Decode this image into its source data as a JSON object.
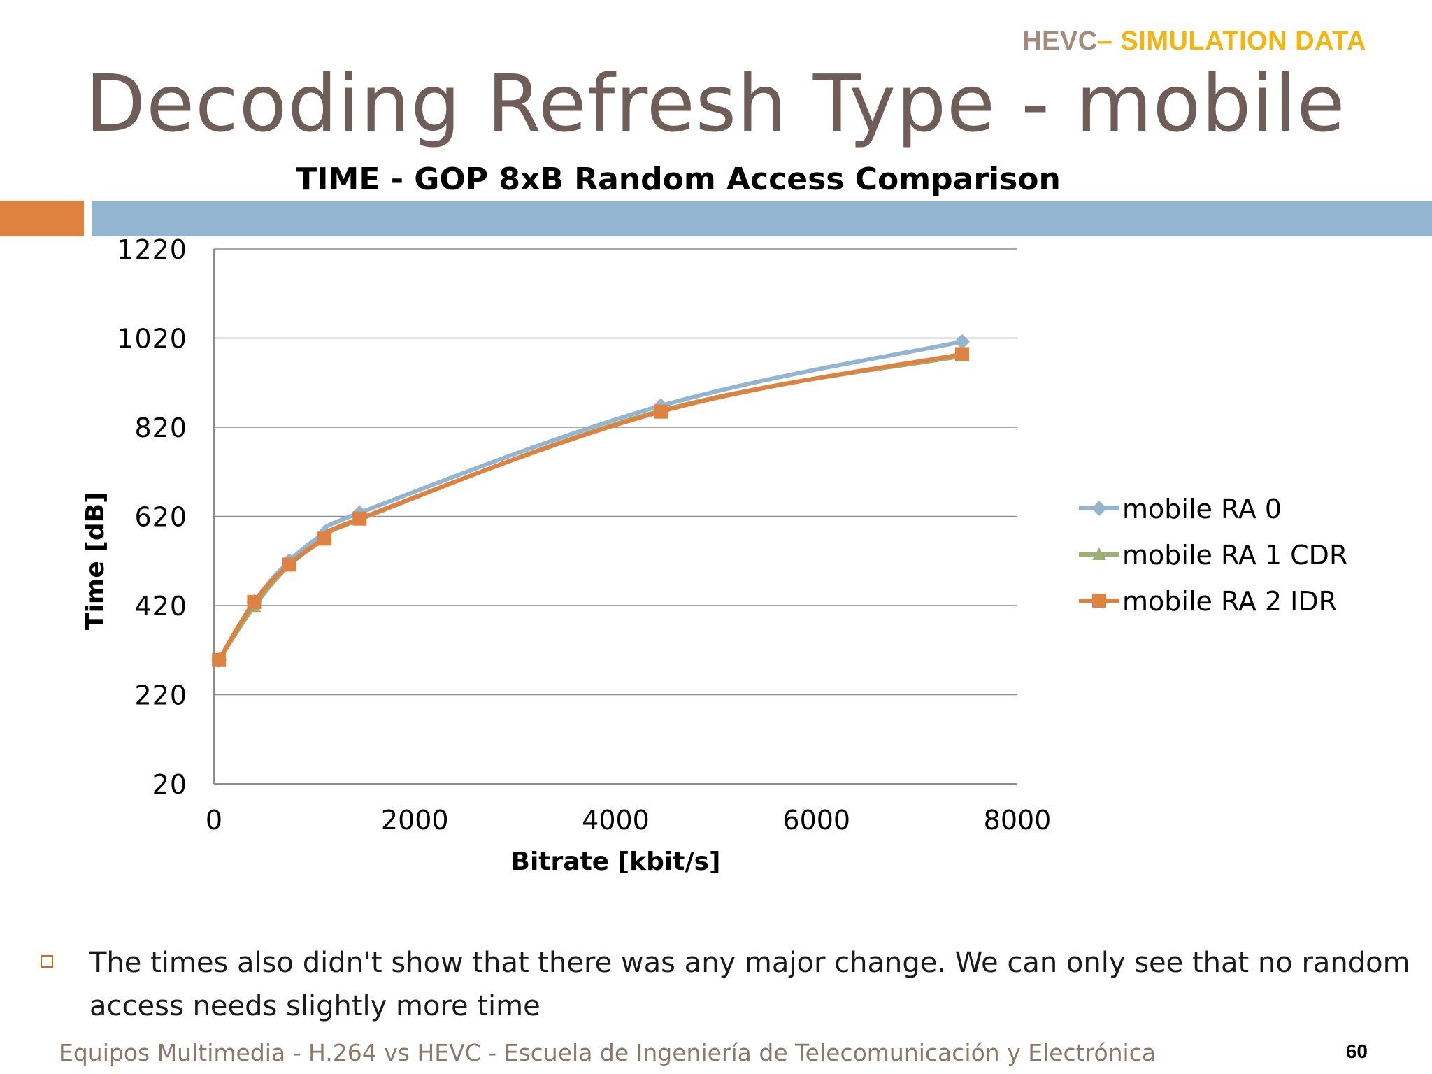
{
  "header": {
    "tag_a": "HEVC",
    "tag_b": "– SIMULATION DATA"
  },
  "slide_title": "Decoding Refresh Type - mobile",
  "bullet": "The times also didn't show that there was any major change. We can only see that no random access needs slightly more time",
  "footer": {
    "text": "Equipos Multimedia - H.264 vs HEVC - Escuela de Ingeniería de Telecomunicación y Electrónica",
    "page": "60"
  },
  "colors": {
    "accent_orange": "#de8242",
    "accent_blue": "#94b5cf",
    "title": "#6f5e57"
  },
  "chart_data": {
    "type": "line",
    "title": "TIME - GOP 8xB Random Access Comparison",
    "xlabel": "Bitrate [kbit/s]",
    "ylabel": "Time [dB]",
    "xlim": [
      0,
      8000
    ],
    "ylim": [
      20,
      1220
    ],
    "xticks": [
      0,
      2000,
      4000,
      6000,
      8000
    ],
    "yticks": [
      20,
      220,
      420,
      620,
      820,
      1020,
      1220
    ],
    "grid": "horizontal",
    "legend": "right",
    "series": [
      {
        "name": "mobile RA 0",
        "color": "#94b5cf",
        "marker": "diamond",
        "x": [
          50,
          400,
          750,
          1100,
          1450,
          4450,
          7450
        ],
        "y": [
          298,
          428,
          520,
          582,
          628,
          868,
          1012
        ]
      },
      {
        "name": "mobile RA 1 CDR",
        "color": "#9bb071",
        "marker": "triangle",
        "x": [
          50,
          400,
          750,
          1100,
          1450,
          4450,
          7450
        ],
        "y": [
          298,
          418,
          510,
          568,
          613,
          857,
          980
        ]
      },
      {
        "name": "mobile RA 2 IDR",
        "color": "#de8242",
        "marker": "square",
        "x": [
          50,
          400,
          750,
          1100,
          1450,
          4450,
          7450
        ],
        "y": [
          298,
          428,
          512,
          570,
          615,
          855,
          984
        ]
      }
    ]
  }
}
